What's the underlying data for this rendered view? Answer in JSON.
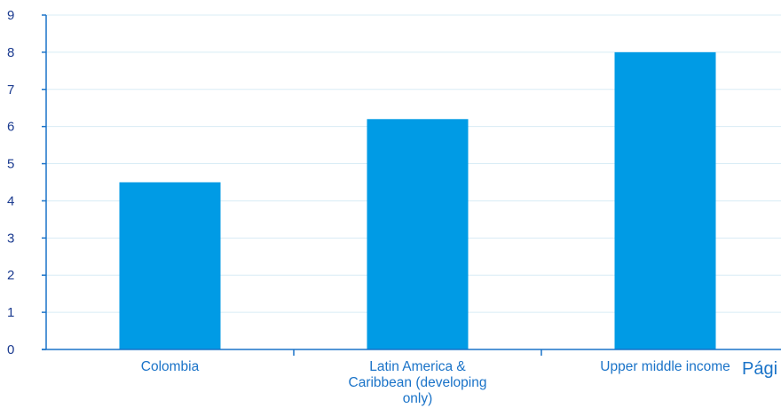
{
  "chart_data": {
    "type": "bar",
    "categories": [
      [
        "Colombia"
      ],
      [
        "Latin America &",
        "Caribbean (developing",
        "only)"
      ],
      [
        "Upper middle income"
      ]
    ],
    "values": [
      4.5,
      6.2,
      8.0
    ],
    "ylim": [
      0,
      9
    ],
    "yticks": [
      0,
      1,
      2,
      3,
      4,
      5,
      6,
      7,
      8,
      9
    ],
    "grid": true,
    "bar_color": "#009be5",
    "gridline_color": "#d8ecf5",
    "axis_color": "#1a73c8",
    "tick_color": "#1a3a8f"
  },
  "overlay": {
    "text": "Pági"
  }
}
